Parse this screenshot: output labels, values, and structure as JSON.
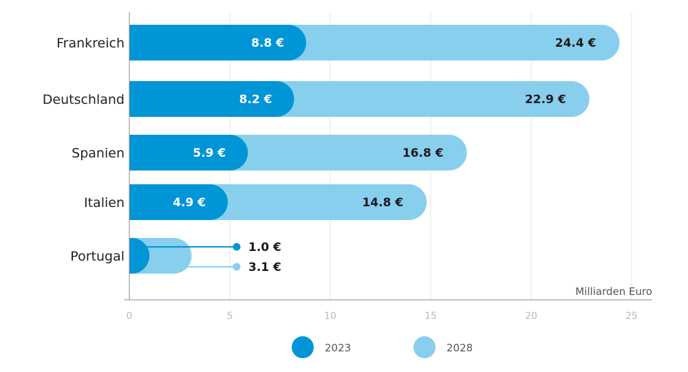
{
  "chart_data": {
    "type": "bar",
    "orientation": "horizontal",
    "categories": [
      "Frankreich",
      "Deutschland",
      "Spanien",
      "Italien",
      "Portugal"
    ],
    "series": [
      {
        "name": "2023",
        "values": [
          8.8,
          8.2,
          5.9,
          4.9,
          1.0
        ],
        "labels": [
          "8.8 €",
          "8.2 €",
          "5.9 €",
          "4.9 €",
          "1.0 €"
        ],
        "color": "#0095d6"
      },
      {
        "name": "2028",
        "values": [
          24.4,
          22.9,
          16.8,
          14.8,
          3.1
        ],
        "labels": [
          "24.4 €",
          "22.9 €",
          "16.8 €",
          "14.8 €",
          "3.1 €"
        ],
        "color": "#88cfee"
      }
    ],
    "x_ticks": [
      0,
      5,
      10,
      15,
      20,
      25
    ],
    "x_tick_labels": [
      "0",
      "5",
      "10",
      "15",
      "20",
      "25"
    ],
    "xlim": [
      0,
      26
    ],
    "xlabel": "Milliarden Euro",
    "legend_position": "bottom-center",
    "grid": "vertical"
  },
  "colors": {
    "grid": "#e6e6e6",
    "axis": "#888888"
  }
}
